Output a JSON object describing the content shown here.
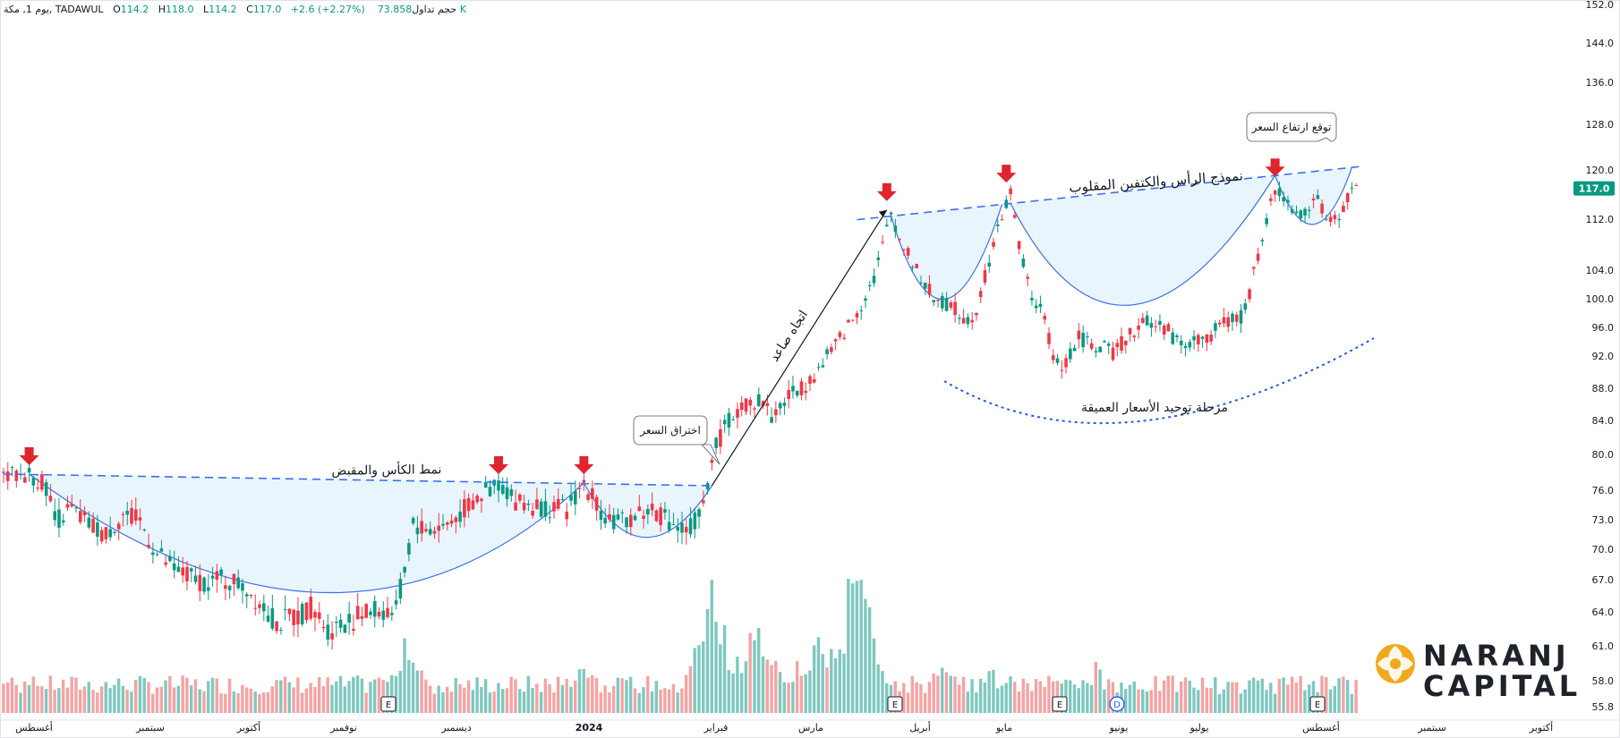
{
  "header": {
    "symbol_line": "يوم 1, مكة, TADAWUL",
    "o_label": "O",
    "o_val": "114.2",
    "h_label": "H",
    "h_val": "118.0",
    "l_label": "L",
    "l_val": "114.2",
    "c_label": "C",
    "c_val": "117.0",
    "change": "+2.6 (+2.27%)",
    "vol_label": "حجم تداول",
    "vol_val": "73.858 K"
  },
  "chart_data": {
    "type": "candlestick",
    "title": "",
    "xlabel": "",
    "ylabel": "",
    "ylim": [
      55.8,
      152.0
    ],
    "y_ticks": [
      "152.0",
      "144.0",
      "136.0",
      "128.0",
      "120.0",
      "112.0",
      "104.0",
      "100.0",
      "96.0",
      "92.0",
      "88.0",
      "84.0",
      "80.0",
      "76.0",
      "73.0",
      "70.0",
      "67.0",
      "64.0",
      "61.0",
      "58.0",
      "55.8"
    ],
    "last_price": "117.0",
    "x_ticks": [
      "أغسطس",
      "سبتمبر",
      "أكتوبر",
      "نوفمبر",
      "ديسمبر",
      "2024",
      "فبراير",
      "مارس",
      "أبريل",
      "مايو",
      "يونيو",
      "يوليو",
      "أغسطس",
      "سبتمبر",
      "أكتوبر"
    ],
    "price_path": [
      [
        0,
        77.5
      ],
      [
        6,
        77.8
      ],
      [
        10,
        76.5
      ],
      [
        12,
        73
      ],
      [
        16,
        74
      ],
      [
        20,
        72.5
      ],
      [
        24,
        71.5
      ],
      [
        28,
        73.5
      ],
      [
        32,
        72.8
      ],
      [
        36,
        69.5
      ],
      [
        40,
        68
      ],
      [
        44,
        67.2
      ],
      [
        48,
        66.8
      ],
      [
        52,
        67
      ],
      [
        56,
        66.5
      ],
      [
        60,
        65
      ],
      [
        64,
        63
      ],
      [
        68,
        63.5
      ],
      [
        72,
        64.5
      ],
      [
        76,
        62.5
      ],
      [
        80,
        63
      ],
      [
        84,
        63.8
      ],
      [
        88,
        64.2
      ],
      [
        92,
        64
      ],
      [
        94,
        68
      ],
      [
        96,
        72.5
      ],
      [
        100,
        72
      ],
      [
        104,
        72.5
      ],
      [
        108,
        74
      ],
      [
        112,
        75.5
      ],
      [
        116,
        76.8
      ],
      [
        120,
        75
      ],
      [
        124,
        74.5
      ],
      [
        128,
        74.2
      ],
      [
        132,
        74
      ],
      [
        136,
        76.8
      ],
      [
        140,
        74
      ],
      [
        144,
        72.5
      ],
      [
        148,
        73.5
      ],
      [
        152,
        74
      ],
      [
        156,
        73
      ],
      [
        160,
        71.8
      ],
      [
        164,
        74
      ],
      [
        166,
        80
      ],
      [
        170,
        84
      ],
      [
        174,
        86
      ],
      [
        178,
        86.5
      ],
      [
        180,
        84.5
      ],
      [
        184,
        87
      ],
      [
        188,
        88.5
      ],
      [
        192,
        91
      ],
      [
        196,
        94.5
      ],
      [
        200,
        98
      ],
      [
        204,
        103
      ],
      [
        206,
        107.8
      ],
      [
        208,
        113
      ],
      [
        210,
        109
      ],
      [
        214,
        104
      ],
      [
        218,
        100
      ],
      [
        222,
        99
      ],
      [
        226,
        97
      ],
      [
        228,
        98.5
      ],
      [
        232,
        108
      ],
      [
        234,
        112.5
      ],
      [
        236,
        116.5
      ],
      [
        238,
        108
      ],
      [
        240,
        102
      ],
      [
        244,
        97
      ],
      [
        246,
        91.5
      ],
      [
        248,
        90.5
      ],
      [
        252,
        94.5
      ],
      [
        256,
        93.5
      ],
      [
        260,
        92.5
      ],
      [
        264,
        95
      ],
      [
        268,
        97
      ],
      [
        272,
        96
      ],
      [
        276,
        93.5
      ],
      [
        278,
        94
      ],
      [
        282,
        94.5
      ],
      [
        286,
        96.5
      ],
      [
        290,
        97.5
      ],
      [
        292,
        101
      ],
      [
        294,
        106
      ],
      [
        296,
        112
      ],
      [
        298,
        117
      ],
      [
        300,
        115.5
      ],
      [
        304,
        112.5
      ],
      [
        308,
        116
      ],
      [
        310,
        111
      ],
      [
        314,
        113.5
      ],
      [
        316,
        117
      ]
    ],
    "volume_peaks": [
      [
        0,
        0.12
      ],
      [
        94,
        0.24
      ],
      [
        136,
        0.16
      ],
      [
        166,
        0.38
      ],
      [
        176,
        0.28
      ],
      [
        190,
        0.23
      ],
      [
        200,
        0.45
      ],
      [
        220,
        0.14
      ],
      [
        232,
        0.13
      ],
      [
        248,
        0.12
      ],
      [
        256,
        0.14
      ],
      [
        294,
        0.09
      ],
      [
        304,
        0.11
      ]
    ],
    "annotations": {
      "cup_handle": "نمط الكأس والمقبض",
      "breakout": "اختراق السعر",
      "uptrend": "اتجاه صاعد",
      "inv_hs": "نموذج الرأس والكتفين المقلوب",
      "consolidation": "مرحلة توحيد الأسعار العميقة",
      "price_expect": "توقع ارتفاع السعر"
    },
    "event_markers": [
      "E",
      "E",
      "E",
      "E",
      "D",
      "E"
    ]
  },
  "logo": {
    "line1": "NARANJ",
    "line2": "CAPITAL"
  },
  "colors": {
    "up": "#089981",
    "down": "#f23645",
    "vol_up": "#7ec8bf",
    "vol_down": "#f4a3a3",
    "pattern": "#3a6ff0",
    "arrow": "#e0252f",
    "fill": "#e4f3fb"
  }
}
